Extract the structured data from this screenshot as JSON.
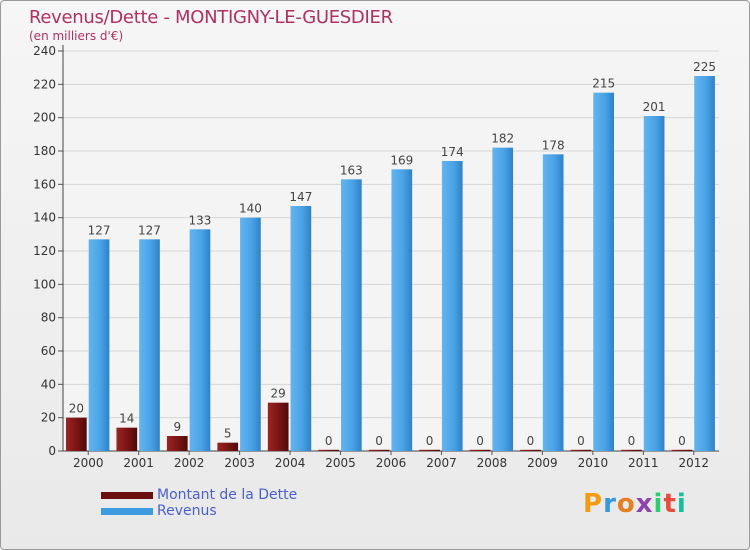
{
  "chart_data": {
    "type": "bar",
    "title": "Revenus/Dette - MONTIGNY-LE-GUESDIER",
    "subtitle": "(en milliers d'€)",
    "categories": [
      "2000",
      "2001",
      "2002",
      "2003",
      "2004",
      "2005",
      "2006",
      "2007",
      "2008",
      "2009",
      "2010",
      "2011",
      "2012"
    ],
    "series": [
      {
        "name": "Montant de la Dette",
        "color": "#7a1414",
        "values": [
          20,
          14,
          9,
          5,
          29,
          0,
          0,
          0,
          0,
          0,
          0,
          0,
          0
        ]
      },
      {
        "name": "Revenus",
        "color": "#3d9be0",
        "values": [
          127,
          127,
          133,
          140,
          147,
          163,
          169,
          174,
          182,
          178,
          215,
          201,
          225
        ]
      }
    ],
    "yticks": [
      0,
      20,
      40,
      60,
      80,
      100,
      120,
      140,
      160,
      180,
      200,
      220,
      240
    ],
    "ylim": [
      0,
      240
    ],
    "grid": "horizontal",
    "legend_position": "bottom-left"
  },
  "legend": {
    "debt_label": "Montant de la Dette",
    "revenue_label": "Revenus"
  },
  "logo": {
    "letters": [
      "P",
      "r",
      "o",
      "x",
      "i",
      "t",
      "i"
    ],
    "colors": [
      "#f39c12",
      "#3498db",
      "#e67e22",
      "#8e44ad",
      "#2ecc71",
      "#e74c3c",
      "#1abc9c"
    ]
  }
}
